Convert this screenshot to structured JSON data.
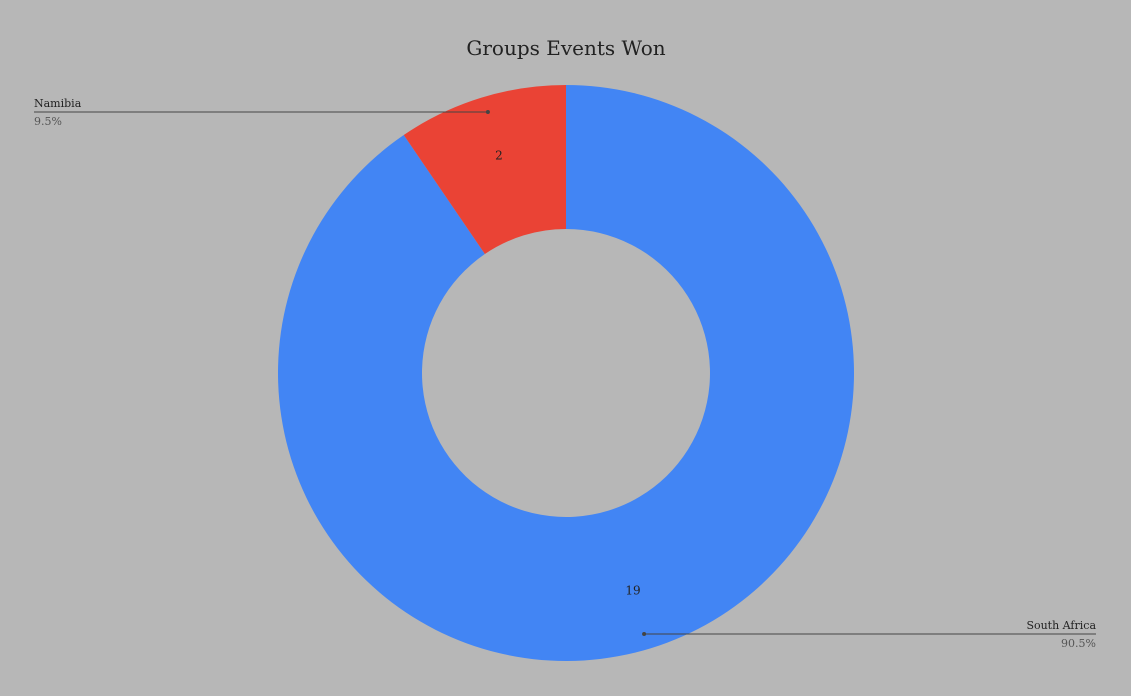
{
  "chart_data": {
    "type": "pie",
    "donut": true,
    "title": "Groups Events Won",
    "background": "#b7b7b7",
    "slices": [
      {
        "label": "South Africa",
        "value": 19,
        "percent_label": "90.5%",
        "color": "#4285f4"
      },
      {
        "label": "Namibia",
        "value": 2,
        "percent_label": "9.5%",
        "color": "#ea4335"
      }
    ],
    "legend": "leader-lines",
    "data_labels": "values"
  }
}
